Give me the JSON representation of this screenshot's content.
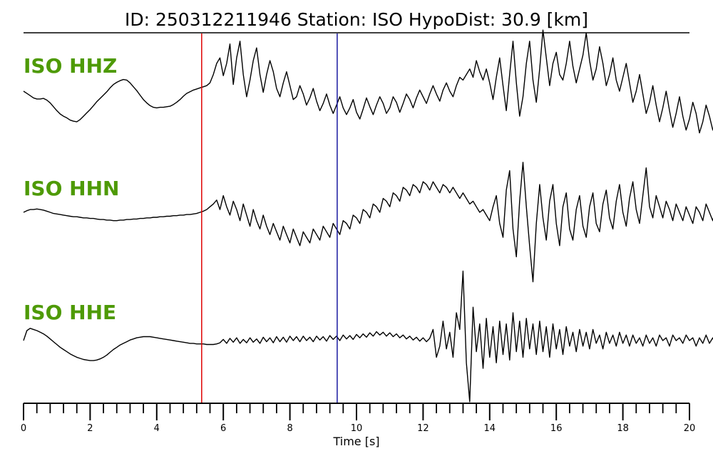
{
  "chart_data": {
    "type": "line",
    "title": "ID: 250312211946   Station: ISO   HypoDist:     30.9 [km]",
    "xlabel": "Time [s]",
    "xlim": [
      0,
      20
    ],
    "x_major_ticks": [
      0,
      2,
      4,
      6,
      8,
      10,
      12,
      14,
      16,
      18,
      20
    ],
    "x_minor_step": 0.4,
    "grid": false,
    "label_color": "#4e9a06",
    "trace_color": "#000000",
    "markers": [
      {
        "name": "P pick",
        "time": 5.35,
        "color": "#e00000"
      },
      {
        "name": "S pick",
        "time": 9.42,
        "color": "#1a1aa0"
      }
    ],
    "series": [
      {
        "name": "ISO HHZ",
        "time_step": 0.1,
        "amplitude": [
          0.0,
          -0.04,
          -0.08,
          -0.12,
          -0.14,
          -0.14,
          -0.13,
          -0.16,
          -0.21,
          -0.28,
          -0.35,
          -0.41,
          -0.45,
          -0.48,
          -0.52,
          -0.54,
          -0.55,
          -0.51,
          -0.45,
          -0.39,
          -0.33,
          -0.26,
          -0.19,
          -0.13,
          -0.07,
          -0.01,
          0.06,
          0.12,
          0.16,
          0.19,
          0.21,
          0.2,
          0.15,
          0.08,
          0.01,
          -0.07,
          -0.15,
          -0.21,
          -0.26,
          -0.29,
          -0.3,
          -0.29,
          -0.29,
          -0.28,
          -0.27,
          -0.24,
          -0.2,
          -0.15,
          -0.09,
          -0.04,
          -0.01,
          0.02,
          0.04,
          0.06,
          0.08,
          0.1,
          0.15,
          0.3,
          0.5,
          0.6,
          0.28,
          0.5,
          0.85,
          0.12,
          0.6,
          0.9,
          0.3,
          -0.1,
          0.2,
          0.55,
          0.78,
          0.3,
          -0.02,
          0.3,
          0.55,
          0.35,
          0.05,
          -0.1,
          0.15,
          0.35,
          0.1,
          -0.15,
          -0.1,
          0.1,
          -0.05,
          -0.25,
          -0.12,
          0.05,
          -0.18,
          -0.35,
          -0.22,
          -0.05,
          -0.25,
          -0.4,
          -0.25,
          -0.1,
          -0.3,
          -0.42,
          -0.3,
          -0.15,
          -0.38,
          -0.5,
          -0.32,
          -0.12,
          -0.28,
          -0.42,
          -0.25,
          -0.1,
          -0.22,
          -0.4,
          -0.3,
          -0.1,
          -0.2,
          -0.38,
          -0.22,
          -0.05,
          -0.15,
          -0.3,
          -0.12,
          0.02,
          -0.1,
          -0.22,
          -0.05,
          0.1,
          -0.05,
          -0.18,
          0.02,
          0.15,
          0.0,
          -0.1,
          0.1,
          0.25,
          0.2,
          0.3,
          0.4,
          0.25,
          0.55,
          0.35,
          0.2,
          0.4,
          0.15,
          -0.15,
          0.25,
          0.6,
          0.1,
          -0.35,
          0.3,
          0.9,
          0.15,
          -0.45,
          -0.1,
          0.5,
          0.9,
          0.2,
          -0.2,
          0.4,
          1.1,
          0.6,
          0.1,
          0.5,
          0.7,
          0.3,
          0.2,
          0.5,
          0.9,
          0.45,
          0.15,
          0.4,
          0.65,
          1.05,
          0.55,
          0.2,
          0.4,
          0.8,
          0.5,
          0.1,
          0.3,
          0.6,
          0.2,
          0.0,
          0.25,
          0.5,
          0.15,
          -0.2,
          0.0,
          0.3,
          -0.05,
          -0.4,
          -0.2,
          0.1,
          -0.25,
          -0.55,
          -0.3,
          0.0,
          -0.35,
          -0.65,
          -0.4,
          -0.1,
          -0.45,
          -0.7,
          -0.5,
          -0.2,
          -0.4,
          -0.75,
          -0.55,
          -0.25,
          -0.45,
          -0.7,
          -0.5,
          -0.3,
          -0.5,
          -0.65,
          -0.45,
          -0.2,
          -0.35,
          -0.5,
          -0.25,
          -0.05,
          -0.2,
          -0.35,
          -0.15,
          0.05,
          -0.1,
          -0.25,
          -0.05,
          0.1,
          0.0,
          -0.15,
          0.05,
          0.2,
          0.05,
          -0.1,
          0.1,
          0.25,
          0.15,
          0.0,
          0.2,
          0.35,
          0.2,
          0.05,
          0.25,
          0.4,
          0.25,
          0.1,
          0.3,
          0.45,
          0.3,
          0.15,
          0.3,
          0.4,
          0.2,
          0.05,
          0.2,
          0.3,
          0.1,
          -0.05,
          0.1,
          0.25,
          0.05,
          -0.1,
          0.05,
          0.2,
          0.0,
          -0.15,
          0.0,
          0.15,
          -0.05,
          -0.2,
          -0.05,
          0.1,
          -0.05,
          -0.2,
          -0.1,
          0.05,
          -0.05,
          -0.15,
          -0.05,
          0.1,
          0.0,
          -0.1,
          0.05,
          0.2,
          0.1,
          -0.05,
          0.1,
          0.25,
          0.15,
          0.0,
          0.15,
          0.3,
          0.2,
          0.05,
          0.2,
          0.35,
          0.25,
          0.1,
          0.3,
          0.4,
          0.35,
          0.2,
          0.3,
          0.45,
          0.35,
          0.2,
          0.3,
          0.4,
          0.25,
          0.1,
          0.2,
          0.3,
          0.15,
          0.0,
          0.1,
          0.2,
          0.05,
          -0.1,
          0.0,
          0.1,
          -0.05,
          -0.15,
          -0.05,
          0.05,
          -0.05,
          -0.15,
          -0.05,
          0.05,
          -0.05,
          -0.1,
          0.0,
          0.1,
          0.0,
          -0.05,
          0.05,
          0.15,
          0.05,
          0.0,
          0.1,
          0.2,
          0.1,
          0.05,
          0.15,
          0.25,
          0.15,
          0.1,
          0.2,
          0.25,
          0.15,
          0.1,
          0.2,
          0.25,
          0.2,
          0.15,
          0.25,
          0.3,
          0.2,
          0.15,
          0.25,
          0.3,
          0.2,
          0.1
        ]
      },
      {
        "name": "ISO HHN",
        "time_step": 0.1,
        "amplitude": [
          0.0,
          0.03,
          0.05,
          0.05,
          0.06,
          0.05,
          0.04,
          0.02,
          0.0,
          -0.02,
          -0.03,
          -0.04,
          -0.05,
          -0.06,
          -0.07,
          -0.08,
          -0.08,
          -0.09,
          -0.1,
          -0.1,
          -0.11,
          -0.11,
          -0.12,
          -0.13,
          -0.13,
          -0.14,
          -0.14,
          -0.15,
          -0.15,
          -0.14,
          -0.14,
          -0.13,
          -0.13,
          -0.12,
          -0.12,
          -0.11,
          -0.11,
          -0.1,
          -0.1,
          -0.09,
          -0.09,
          -0.08,
          -0.08,
          -0.07,
          -0.07,
          -0.06,
          -0.06,
          -0.05,
          -0.05,
          -0.04,
          -0.04,
          -0.03,
          -0.02,
          0.0,
          0.02,
          0.05,
          0.1,
          0.15,
          0.22,
          0.05,
          0.3,
          0.1,
          -0.05,
          0.2,
          0.05,
          -0.15,
          0.15,
          -0.05,
          -0.25,
          0.05,
          -0.15,
          -0.3,
          -0.05,
          -0.25,
          -0.4,
          -0.2,
          -0.35,
          -0.5,
          -0.25,
          -0.4,
          -0.55,
          -0.3,
          -0.45,
          -0.6,
          -0.35,
          -0.45,
          -0.55,
          -0.3,
          -0.4,
          -0.5,
          -0.25,
          -0.35,
          -0.45,
          -0.2,
          -0.3,
          -0.4,
          -0.15,
          -0.2,
          -0.3,
          -0.05,
          -0.1,
          -0.2,
          0.05,
          0.0,
          -0.1,
          0.15,
          0.1,
          0.0,
          0.25,
          0.2,
          0.1,
          0.35,
          0.3,
          0.2,
          0.45,
          0.4,
          0.3,
          0.5,
          0.45,
          0.35,
          0.55,
          0.5,
          0.4,
          0.55,
          0.45,
          0.35,
          0.5,
          0.45,
          0.35,
          0.45,
          0.35,
          0.25,
          0.35,
          0.25,
          0.15,
          0.2,
          0.1,
          0.0,
          0.05,
          -0.05,
          -0.15,
          0.1,
          0.3,
          -0.2,
          -0.45,
          0.4,
          0.75,
          -0.3,
          -0.8,
          0.2,
          0.9,
          0.1,
          -0.6,
          -1.25,
          -0.2,
          0.5,
          -0.1,
          -0.5,
          0.2,
          0.5,
          -0.2,
          -0.6,
          0.1,
          0.35,
          -0.3,
          -0.5,
          0.05,
          0.3,
          -0.25,
          -0.45,
          0.1,
          0.35,
          -0.2,
          -0.35,
          0.15,
          0.4,
          -0.1,
          -0.3,
          0.2,
          0.5,
          0.0,
          -0.25,
          0.25,
          0.55,
          0.05,
          -0.2,
          0.3,
          0.8,
          0.1,
          -0.1,
          0.3,
          0.1,
          -0.1,
          0.2,
          0.05,
          -0.15,
          0.15,
          0.0,
          -0.15,
          0.1,
          -0.05,
          -0.2,
          0.1,
          0.0,
          -0.15,
          0.15,
          0.0,
          -0.15,
          0.1,
          -0.05,
          -0.2,
          0.05,
          -0.1,
          -0.25,
          0.0,
          -0.1,
          -0.25,
          0.05,
          -0.1,
          -0.2,
          0.1,
          0.0,
          -0.15,
          0.15,
          0.05,
          -0.1,
          0.15,
          0.05,
          -0.1,
          0.2,
          0.05,
          -0.05,
          0.2,
          0.05,
          -0.1,
          0.15,
          0.0,
          -0.1,
          0.1,
          -0.05,
          -0.15,
          0.1,
          0.0,
          -0.15,
          0.1,
          -0.05,
          -0.2,
          0.05,
          -0.1,
          -0.2,
          0.05,
          -0.05,
          -0.15,
          0.1,
          0.0,
          -0.15,
          0.1,
          0.0,
          -0.1,
          0.15,
          0.0,
          -0.1,
          0.15,
          0.05,
          -0.05,
          0.2,
          0.05,
          -0.05,
          0.15,
          0.0,
          -0.1,
          0.1,
          0.0,
          -0.1,
          0.1,
          -0.05,
          -0.15,
          0.05,
          -0.05,
          -0.15,
          0.05,
          -0.05,
          -0.1,
          0.1,
          0.0,
          -0.1,
          0.1,
          0.0,
          -0.05,
          0.15,
          0.0,
          -0.05,
          0.1,
          0.0,
          -0.05,
          0.1,
          0.0,
          -0.05,
          0.1,
          -0.05,
          -0.1,
          0.05,
          -0.05,
          -0.1,
          0.05,
          -0.05,
          -0.1,
          0.1,
          0.0,
          -0.05,
          0.1,
          0.0,
          -0.05,
          0.1,
          0.05,
          -0.05,
          0.1,
          0.05,
          0.0,
          0.1,
          0.05,
          0.0,
          0.1,
          0.0,
          -0.05,
          0.05,
          0.0,
          -0.05,
          0.05,
          0.0,
          -0.05,
          0.1,
          0.05,
          0.0,
          0.1,
          0.05,
          0.0,
          0.1,
          0.05,
          -0.05,
          0.05,
          0.0
        ]
      },
      {
        "name": "ISO HHE",
        "time_step": 0.1,
        "amplitude": [
          0.0,
          0.18,
          0.22,
          0.2,
          0.18,
          0.15,
          0.12,
          0.08,
          0.03,
          -0.02,
          -0.07,
          -0.12,
          -0.16,
          -0.2,
          -0.24,
          -0.27,
          -0.3,
          -0.32,
          -0.34,
          -0.35,
          -0.36,
          -0.36,
          -0.35,
          -0.33,
          -0.3,
          -0.26,
          -0.21,
          -0.16,
          -0.12,
          -0.08,
          -0.05,
          -0.02,
          0.01,
          0.03,
          0.05,
          0.06,
          0.07,
          0.07,
          0.07,
          0.06,
          0.05,
          0.04,
          0.03,
          0.02,
          0.01,
          0.0,
          -0.01,
          -0.02,
          -0.03,
          -0.04,
          -0.05,
          -0.05,
          -0.06,
          -0.06,
          -0.06,
          -0.07,
          -0.07,
          -0.07,
          -0.06,
          -0.04,
          0.02,
          -0.05,
          0.04,
          -0.03,
          0.05,
          -0.05,
          0.02,
          -0.04,
          0.05,
          -0.03,
          0.03,
          -0.05,
          0.06,
          -0.02,
          0.05,
          -0.04,
          0.07,
          -0.02,
          0.06,
          -0.03,
          0.08,
          0.0,
          0.07,
          -0.02,
          0.08,
          0.0,
          0.06,
          -0.02,
          0.08,
          0.01,
          0.07,
          -0.01,
          0.09,
          0.02,
          0.08,
          0.0,
          0.1,
          0.03,
          0.09,
          0.02,
          0.11,
          0.05,
          0.12,
          0.06,
          0.14,
          0.08,
          0.16,
          0.1,
          0.15,
          0.08,
          0.14,
          0.07,
          0.12,
          0.05,
          0.1,
          0.03,
          0.08,
          0.01,
          0.06,
          -0.01,
          0.05,
          -0.02,
          0.04,
          0.2,
          -0.3,
          -0.1,
          0.35,
          -0.15,
          0.15,
          -0.3,
          0.5,
          0.2,
          1.25,
          -0.4,
          -1.1,
          0.6,
          -0.2,
          0.3,
          -0.5,
          0.4,
          -0.3,
          0.25,
          -0.4,
          0.35,
          -0.25,
          0.3,
          -0.35,
          0.5,
          -0.2,
          0.35,
          -0.3,
          0.4,
          -0.15,
          0.3,
          -0.25,
          0.35,
          -0.2,
          0.25,
          -0.3,
          0.3,
          -0.15,
          0.2,
          -0.25,
          0.25,
          -0.1,
          0.15,
          -0.2,
          0.2,
          -0.1,
          0.15,
          -0.15,
          0.2,
          -0.05,
          0.1,
          -0.15,
          0.15,
          -0.05,
          0.1,
          -0.1,
          0.15,
          -0.05,
          0.1,
          -0.1,
          0.1,
          -0.05,
          0.05,
          -0.1,
          0.1,
          -0.05,
          0.05,
          -0.1,
          0.1,
          0.0,
          0.05,
          -0.1,
          0.1,
          0.0,
          0.05,
          -0.05,
          0.1,
          0.0,
          0.05,
          -0.1,
          0.05,
          -0.05,
          0.1,
          -0.05,
          0.05,
          -0.1,
          0.1,
          0.0,
          0.05,
          -0.05,
          0.1,
          0.0,
          0.05,
          -0.05,
          0.05,
          -0.05,
          0.1,
          0.0,
          0.05,
          -0.05,
          0.1,
          0.0,
          0.05,
          -0.05,
          0.05,
          -0.1,
          0.05,
          -0.05,
          0.05,
          -0.1,
          0.05,
          0.0,
          0.05,
          -0.05,
          0.1,
          0.0,
          0.05,
          -0.05,
          0.1,
          0.0,
          0.05,
          -0.05,
          0.1,
          0.0,
          0.1,
          -0.05,
          0.05,
          -0.05,
          0.1,
          0.0,
          0.05,
          -0.05,
          0.1,
          0.0,
          0.05,
          -0.1,
          0.05,
          -0.05,
          0.05,
          -0.1,
          0.05,
          -0.05,
          0.05,
          -0.05,
          0.1,
          0.0,
          0.05,
          -0.05,
          0.1,
          0.0,
          0.05,
          -0.05,
          0.1,
          0.0,
          0.05,
          -0.05,
          0.05,
          -0.05,
          0.1,
          0.0,
          0.05,
          -0.05,
          0.05,
          -0.05,
          0.05,
          -0.05,
          0.05,
          -0.1,
          0.05,
          -0.05,
          0.05,
          -0.05,
          0.1,
          0.0,
          0.05,
          -0.05,
          0.05,
          -0.05,
          0.05,
          -0.05,
          0.1,
          0.0,
          0.05,
          -0.05,
          0.05,
          -0.05,
          0.05,
          -0.05,
          0.05,
          -0.1,
          0.05,
          -0.05,
          0.05,
          -0.05,
          0.1,
          0.0,
          0.05,
          -0.05,
          0.05,
          -0.05
        ]
      }
    ]
  }
}
